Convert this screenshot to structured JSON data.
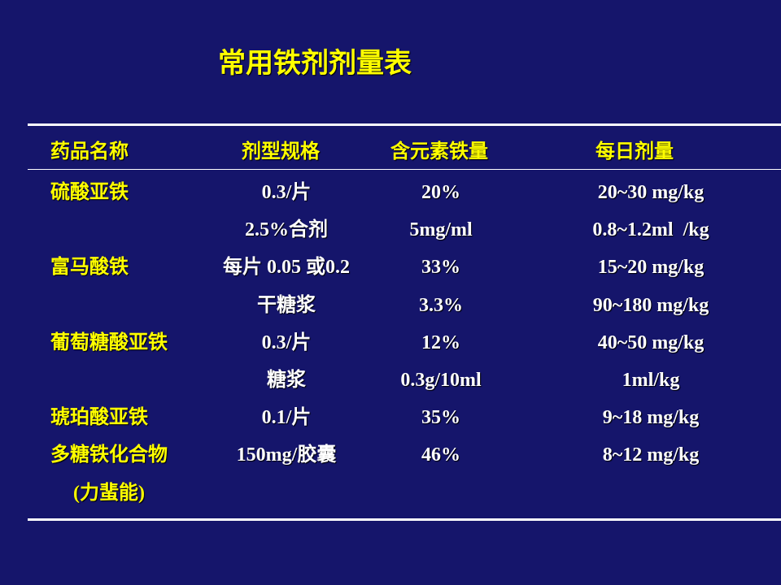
{
  "title": "常用铁剂剂量表",
  "header": {
    "name": "药品名称",
    "form": "剂型规格",
    "iron": "含元素铁量",
    "dose": "每日剂量"
  },
  "rows": [
    {
      "name": "硫酸亚铁",
      "form": "0.3/片",
      "iron": "20%",
      "dose": "20~30 mg/kg"
    },
    {
      "form": "2.5%合剂",
      "iron": "5mg/ml",
      "dose": "0.8~1.2ml  /kg"
    },
    {
      "name": "富马酸铁",
      "form": "每片 0.05 或0.2",
      "iron": "33%",
      "dose": "15~20 mg/kg"
    },
    {
      "form": "干糖浆",
      "iron": "3.3%",
      "dose": "90~180 mg/kg"
    },
    {
      "name": "葡萄糖酸亚铁",
      "form": "0.3/片",
      "iron": "12%",
      "dose": "40~50 mg/kg"
    },
    {
      "form": "糖浆",
      "iron": "0.3g/10ml",
      "dose": "1ml/kg"
    },
    {
      "name": "琥珀酸亚铁",
      "form": "0.1/片",
      "iron": "35%",
      "dose": "9~18 mg/kg"
    },
    {
      "name": "多糖铁化合物",
      "form": "150mg/胶囊",
      "iron": "46%",
      "dose": "8~12 mg/kg"
    },
    {
      "name": "(力蜚能)"
    }
  ]
}
